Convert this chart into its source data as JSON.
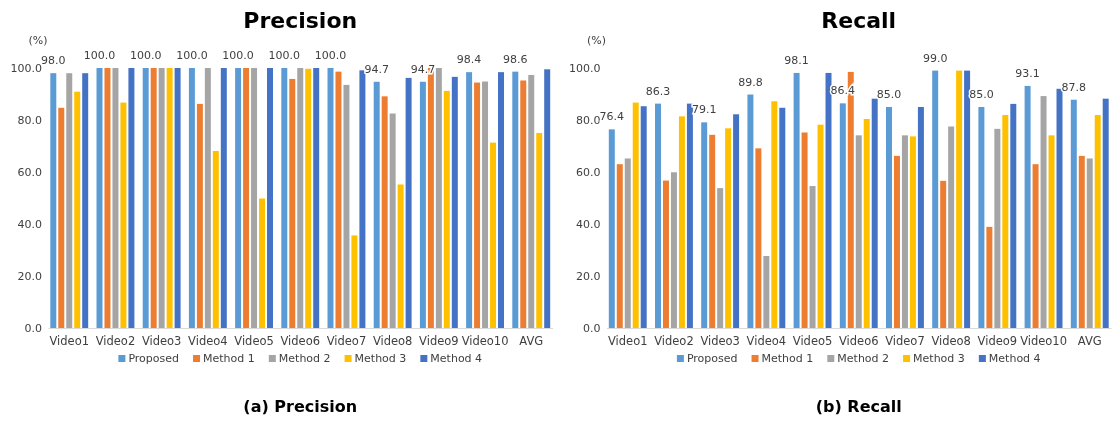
{
  "chart_data": [
    {
      "type": "bar",
      "title": "Precision",
      "ylabel": "(%)",
      "categories": [
        "Video1",
        "Video2",
        "Video3",
        "Video4",
        "Video5",
        "Video6",
        "Video7",
        "Video8",
        "Video9",
        "Video10",
        "AVG"
      ],
      "ylim": [
        0,
        100
      ],
      "yticks": [
        {
          "value": 0,
          "label": "0.0"
        },
        {
          "value": 20,
          "label": "20.0"
        },
        {
          "value": 40,
          "label": "40.0"
        },
        {
          "value": 60,
          "label": "60.0"
        },
        {
          "value": 80,
          "label": "80.0"
        },
        {
          "value": 100,
          "label": "100.0"
        }
      ],
      "legend": "bottom",
      "annotations": [
        "(a) Precision"
      ],
      "series": [
        {
          "name": "Proposed",
          "color": "#5b9bd5",
          "values": [
            98.0,
            100.0,
            100.0,
            100.0,
            100.0,
            100.0,
            100.0,
            94.7,
            94.7,
            98.4,
            98.6
          ],
          "value_labels": [
            "98.0",
            "100.0",
            "100.0",
            "100.0",
            "100.0",
            "100.0",
            "100.0",
            "94.7",
            "94.7",
            "98.4",
            "98.6"
          ]
        },
        {
          "name": "Method 1",
          "color": "#ed7d31",
          "values": [
            84.7,
            100,
            100,
            86.2,
            100,
            95.8,
            98.6,
            89.1,
            100,
            94.4,
            95.2
          ]
        },
        {
          "name": "Method 2",
          "color": "#a5a5a5",
          "values": [
            98,
            100,
            100,
            100,
            100,
            100,
            93.5,
            82.5,
            100,
            94.8,
            97.3
          ]
        },
        {
          "name": "Method 3",
          "color": "#ffc000",
          "values": [
            90.9,
            86.7,
            100,
            68.1,
            49.8,
            99.7,
            35.6,
            55.2,
            91.2,
            71.3,
            75.0
          ]
        },
        {
          "name": "Method 4",
          "color": "#4472c4",
          "values": [
            98,
            100,
            100,
            100,
            100,
            100,
            99.1,
            96.2,
            96.6,
            98.4,
            99.5
          ]
        }
      ]
    },
    {
      "type": "bar",
      "title": "Recall",
      "ylabel": "(%)",
      "categories": [
        "Video1",
        "Video2",
        "Video3",
        "Video4",
        "Video5",
        "Video6",
        "Video7",
        "Video8",
        "Video9",
        "Video10",
        "AVG"
      ],
      "ylim": [
        0,
        100
      ],
      "yticks": [
        {
          "value": 0,
          "label": "0.0"
        },
        {
          "value": 20,
          "label": "20.0"
        },
        {
          "value": 40,
          "label": "40.0"
        },
        {
          "value": 60,
          "label": "60.0"
        },
        {
          "value": 80,
          "label": "80.0"
        },
        {
          "value": 100,
          "label": "100.0"
        }
      ],
      "legend": "bottom",
      "annotations": [
        "(b) Recall"
      ],
      "series": [
        {
          "name": "Proposed",
          "color": "#5b9bd5",
          "values": [
            76.4,
            86.3,
            79.1,
            89.8,
            98.1,
            86.4,
            85.0,
            99.0,
            85.0,
            93.1,
            87.8
          ],
          "value_labels": [
            "76.4",
            "86.3",
            "79.1",
            "89.8",
            "98.1",
            "86.4",
            "85.0",
            "99.0",
            "85.0",
            "93.1",
            "87.8"
          ]
        },
        {
          "name": "Method 1",
          "color": "#ed7d31",
          "values": [
            63.0,
            56.7,
            74.3,
            69.1,
            75.2,
            98.5,
            66.2,
            56.6,
            38.9,
            63.0,
            66.2
          ]
        },
        {
          "name": "Method 2",
          "color": "#a5a5a5",
          "values": [
            65.2,
            59.9,
            53.8,
            27.7,
            54.6,
            74.1,
            74.1,
            77.5,
            76.6,
            89.2,
            65.2
          ]
        },
        {
          "name": "Method 3",
          "color": "#ffc000",
          "values": [
            86.7,
            81.4,
            76.8,
            87.2,
            78.2,
            80.4,
            73.7,
            99.0,
            81.9,
            74.1,
            81.9
          ]
        },
        {
          "name": "Method 4",
          "color": "#4472c4",
          "values": [
            85.3,
            86.3,
            82.2,
            84.7,
            98.1,
            88.2,
            85.0,
            99.0,
            86.2,
            92.0,
            88.2
          ]
        }
      ]
    }
  ]
}
